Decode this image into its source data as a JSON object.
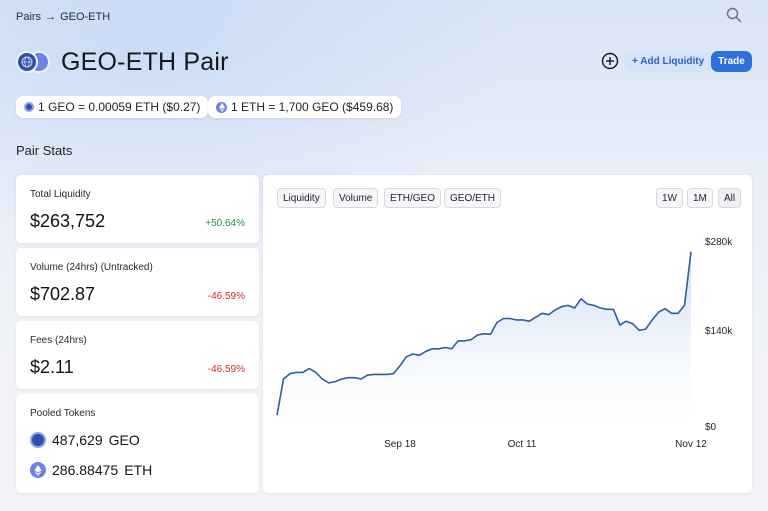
{
  "breadcrumb": {
    "parent": "Pairs",
    "separator": "→",
    "current": "GEO-ETH"
  },
  "header": {
    "title": "GEO-ETH Pair",
    "add_liquidity": "+ Add Liquidity",
    "trade": "Trade"
  },
  "prices": {
    "geo": "1 GEO = 0.00059 ETH ($0.27)",
    "eth": "1 ETH = 1,700 GEO ($459.68)"
  },
  "section_title": "Pair Stats",
  "stats": {
    "liquidity": {
      "label": "Total Liquidity",
      "value": "$263,752",
      "change": "+50.64%"
    },
    "volume": {
      "label": "Volume (24hrs) (Untracked)",
      "value": "$702.87",
      "change": "-46.59%"
    },
    "fees": {
      "label": "Fees (24hrs)",
      "value": "$2.11",
      "change": "-46.59%"
    }
  },
  "pooled": {
    "label": "Pooled Tokens",
    "geo": {
      "amount": "487,629",
      "symbol": "GEO"
    },
    "eth": {
      "amount": "286.88475",
      "symbol": "ETH"
    }
  },
  "chart_tabs": [
    "Liquidity",
    "Volume",
    "ETH/GEO",
    "GEO/ETH"
  ],
  "range_tabs": [
    "1W",
    "1M",
    "All"
  ],
  "colors": {
    "accent": "#2f6fd9",
    "positive": "#2a8a3c",
    "negative": "#d02b2b",
    "line": "#2b5f9e"
  },
  "chart_data": {
    "type": "area",
    "title": "",
    "x_ticks": [
      "Sep 18",
      "Oct 11",
      "Nov 12"
    ],
    "y_ticks": [
      "$280k",
      "$140k",
      "$0"
    ],
    "ylim": [
      0,
      280000
    ],
    "series": [
      {
        "values": [
          15000,
          70000,
          78000,
          80000,
          80000,
          86000,
          80000,
          70000,
          64000,
          66000,
          70000,
          72000,
          72000,
          70000,
          76000,
          77000,
          77000,
          77000,
          78000,
          90000,
          104000,
          108000,
          106000,
          112000,
          116000,
          116000,
          118000,
          116000,
          128000,
          128000,
          130000,
          137000,
          139000,
          138000,
          156000,
          162000,
          162000,
          160000,
          160000,
          158000,
          164000,
          170000,
          168000,
          175000,
          180000,
          182000,
          178000,
          192000,
          184000,
          182000,
          178000,
          176000,
          176000,
          152000,
          158000,
          154000,
          144000,
          146000,
          160000,
          172000,
          177000,
          170000,
          170000,
          182000,
          263752
        ]
      }
    ]
  }
}
